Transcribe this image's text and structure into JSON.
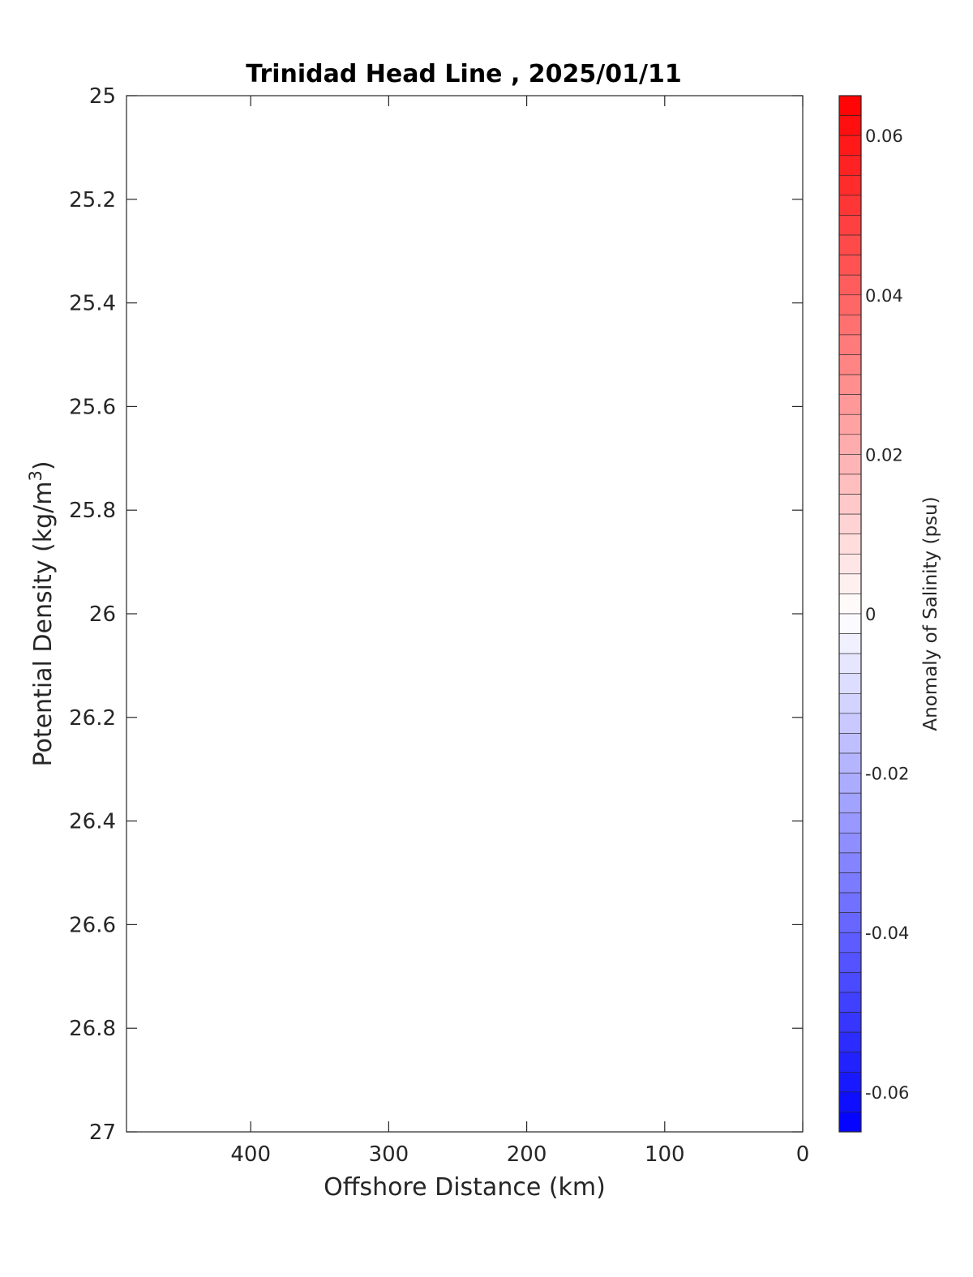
{
  "chart_data": {
    "type": "heatmap",
    "title": "Trinidad Head Line , 2025/01/11",
    "xlabel": "Offshore Distance (km)",
    "ylabel_main": "Potential Density (kg/m",
    "ylabel_sup": "3",
    "ylabel_close": ")",
    "xlim": [
      490,
      0
    ],
    "x_ticks": [
      400,
      300,
      200,
      100,
      0
    ],
    "x_tick_labels": [
      "400",
      "300",
      "200",
      "100",
      "0"
    ],
    "ylim": [
      25,
      27
    ],
    "y_ticks": [
      25,
      25.2,
      25.4,
      25.6,
      25.8,
      26,
      26.2,
      26.4,
      26.6,
      26.8,
      27
    ],
    "y_tick_labels": [
      "25",
      "25.2",
      "25.4",
      "25.6",
      "25.8",
      "26",
      "26.2",
      "26.4",
      "26.6",
      "26.8",
      "27"
    ],
    "y_reversed": true,
    "values": [],
    "colorbar": {
      "label": "Anomaly of Salinity (psu)",
      "range": [
        -0.065,
        0.065
      ],
      "levels": 52,
      "ticks": [
        0.06,
        0.04,
        0.02,
        0,
        -0.02,
        -0.04,
        -0.06
      ],
      "tick_labels": [
        "0.06",
        "0.04",
        "0.02",
        "0",
        "-0.02",
        "-0.04",
        "-0.06"
      ],
      "color_high": "#ff0000",
      "color_mid": "#ffffff",
      "color_low": "#0000ff"
    }
  }
}
